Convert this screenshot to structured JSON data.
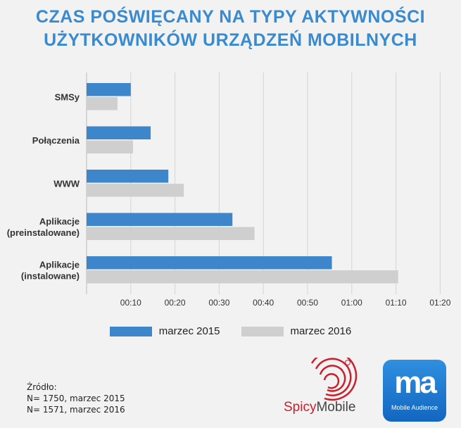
{
  "title_line1": "CZAS POŚWIĘCANY NA TYPY AKTYWNOŚCI",
  "title_line2": "UŻYTKOWNIKÓW URZĄDZEŃ MOBILNYCH",
  "chart_data": {
    "type": "bar",
    "orientation": "horizontal",
    "unit": "minutes",
    "categories": [
      "SMSy",
      "Połączenia",
      "WWW",
      "Aplikacje (preinstalowane)",
      "Aplikacje (instalowane)"
    ],
    "series": [
      {
        "name": "marzec 2015",
        "color": "#3d86cc",
        "values": [
          10,
          14.5,
          18.5,
          33,
          55.5
        ]
      },
      {
        "name": "marzec 2016",
        "color": "#cfcfcf",
        "values": [
          7,
          10.5,
          22,
          38,
          70.5
        ]
      }
    ],
    "xlim": [
      0,
      80
    ],
    "xticks": [
      "00:10",
      "00:20",
      "00:30",
      "00:40",
      "00:50",
      "01:00",
      "01:10",
      "01:20"
    ],
    "xtick_values": [
      10,
      20,
      30,
      40,
      50,
      60,
      70,
      80
    ],
    "grid": true,
    "legend": "bottom"
  },
  "source": {
    "heading": "Źródło:",
    "line1": "N= 1750, marzec 2015",
    "line2": "N= 1571, marzec 2016"
  },
  "logos": {
    "spicy_part1": "Spicy",
    "spicy_part2": "Mobile",
    "ma_mark": "ma",
    "ma_sub": "Mobile Audience"
  }
}
